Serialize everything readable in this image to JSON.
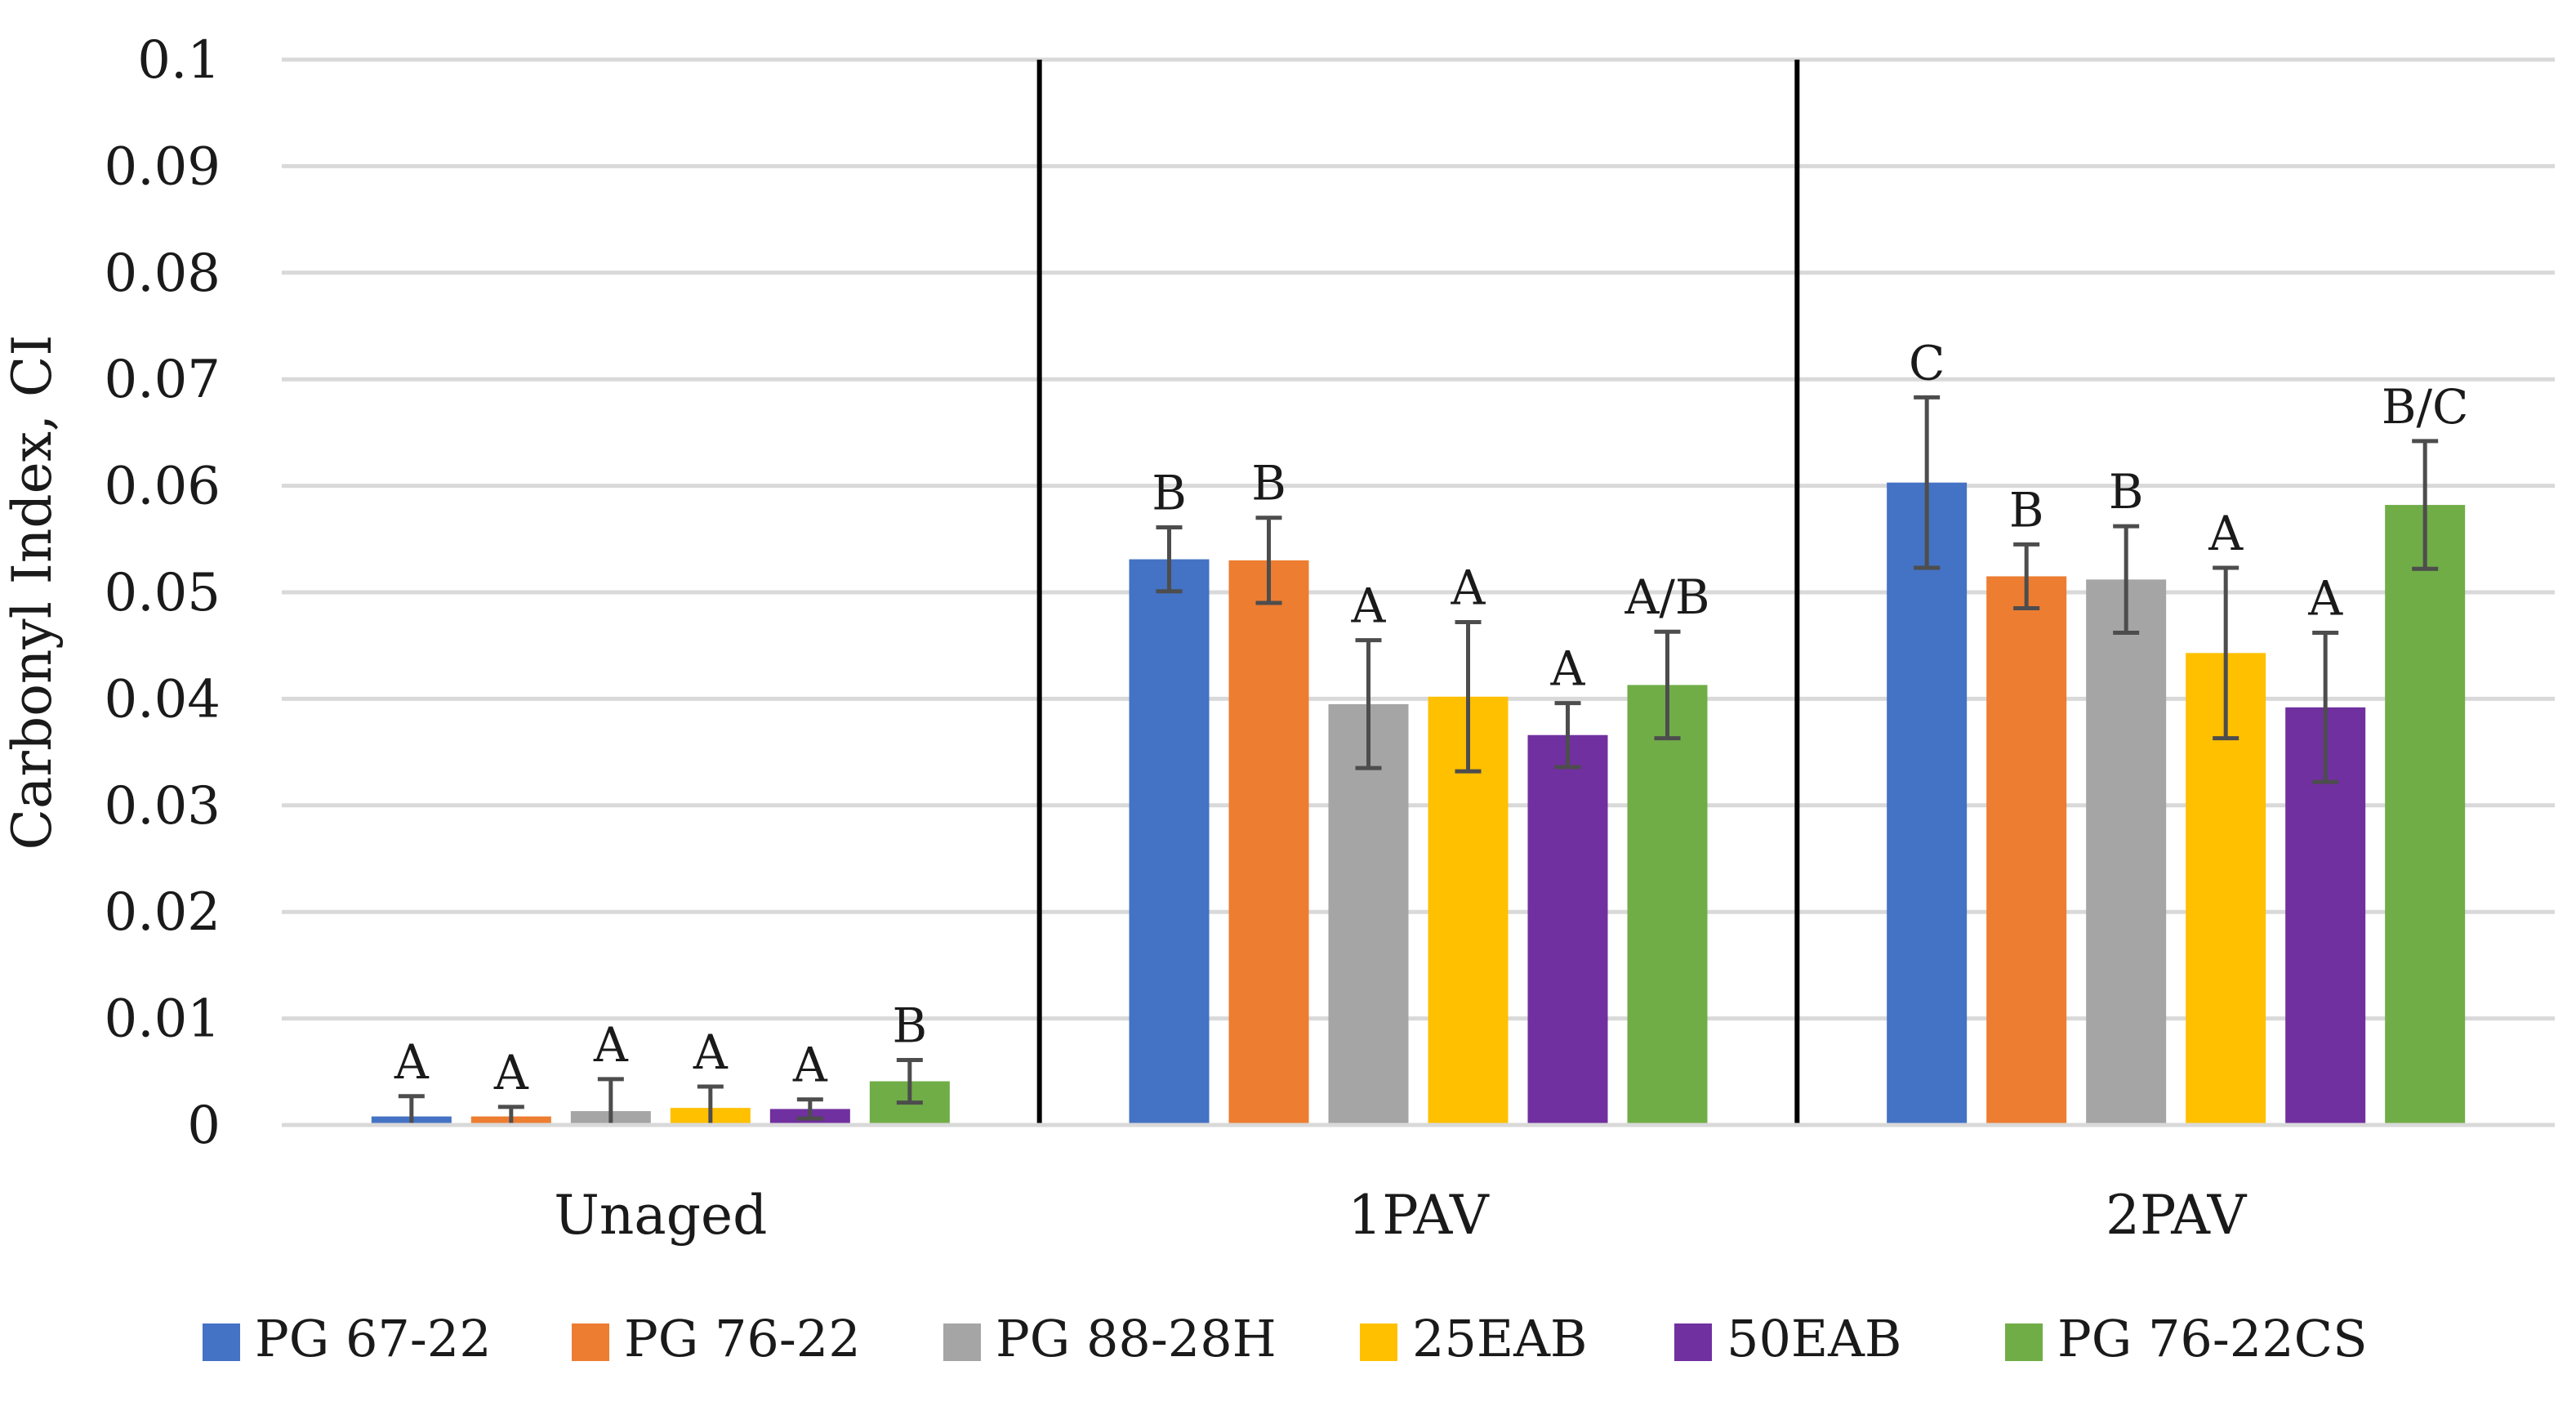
{
  "chart_data": {
    "type": "bar",
    "ylabel": "Carbonyl Index, CI",
    "xlabel": "",
    "ylim": [
      0,
      0.1
    ],
    "yticks": [
      0,
      0.01,
      0.02,
      0.03,
      0.04,
      0.05,
      0.06,
      0.07,
      0.08,
      0.09,
      0.1
    ],
    "ytick_labels": [
      "0",
      "0.01",
      "0.02",
      "0.03",
      "0.04",
      "0.05",
      "0.06",
      "0.07",
      "0.08",
      "0.09",
      "0.1"
    ],
    "grid": true,
    "legend_position": "bottom",
    "categories": [
      "Unaged",
      "1PAV",
      "2PAV"
    ],
    "series": [
      {
        "name": "PG 67-22",
        "color": "#4472C4",
        "values": [
          0.0008,
          0.0531,
          0.0603
        ],
        "error": [
          0.0019,
          0.003,
          0.008
        ],
        "labels": [
          "A",
          "B",
          "C"
        ]
      },
      {
        "name": "PG 76-22",
        "color": "#ED7D31",
        "values": [
          0.0008,
          0.053,
          0.0515
        ],
        "error": [
          0.0009,
          0.004,
          0.003
        ],
        "labels": [
          "A",
          "B",
          "B"
        ]
      },
      {
        "name": "PG 88-28H",
        "color": "#A5A5A5",
        "values": [
          0.0013,
          0.0395,
          0.0512
        ],
        "error": [
          0.003,
          0.006,
          0.005
        ],
        "labels": [
          "A",
          "A",
          "B"
        ]
      },
      {
        "name": "25EAB",
        "color": "#FFC000",
        "values": [
          0.0016,
          0.0402,
          0.0443
        ],
        "error": [
          0.002,
          0.007,
          0.008
        ],
        "labels": [
          "A",
          "A",
          "A"
        ]
      },
      {
        "name": "50EAB",
        "color": "#7030A0",
        "values": [
          0.0015,
          0.0366,
          0.0392
        ],
        "error": [
          0.0009,
          0.003,
          0.007
        ],
        "labels": [
          "A",
          "A",
          "A"
        ]
      },
      {
        "name": "PG 76-22CS",
        "color": "#70AD47",
        "values": [
          0.0041,
          0.0413,
          0.0582
        ],
        "error": [
          0.002,
          0.005,
          0.006
        ],
        "labels": [
          "B",
          "A/B",
          "B/C"
        ]
      }
    ]
  }
}
